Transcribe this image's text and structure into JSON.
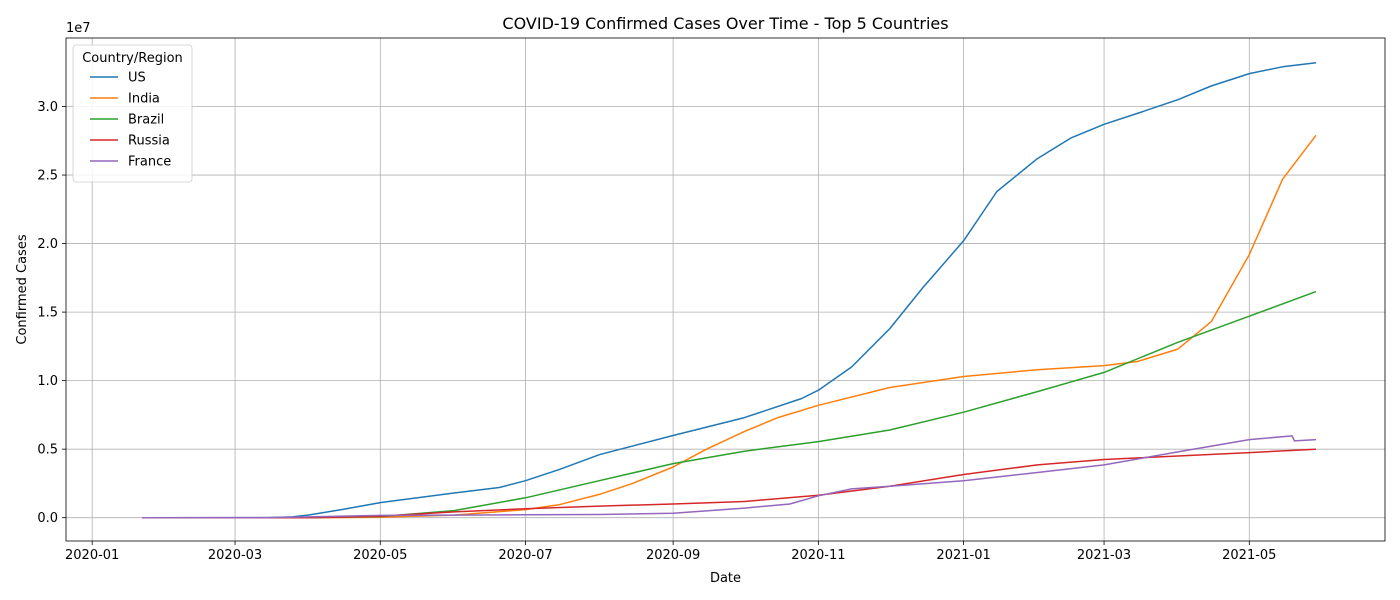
{
  "chart_data": {
    "type": "line",
    "title": "COVID-19 Confirmed Cases Over Time - Top 5 Countries",
    "xlabel": "Date",
    "ylabel": "Confirmed Cases",
    "y_scale_label": "1e7",
    "x_type": "date",
    "xlim": [
      "2019-12-21",
      "2021-06-27"
    ],
    "ylim": [
      -1700000,
      35000000
    ],
    "x_ticks": [
      "2020-01-01",
      "2020-03-01",
      "2020-05-01",
      "2020-07-01",
      "2020-09-01",
      "2020-11-01",
      "2021-01-01",
      "2021-03-01",
      "2021-05-01"
    ],
    "x_tick_labels": [
      "2020-01",
      "2020-03",
      "2020-05",
      "2020-07",
      "2020-09",
      "2020-11",
      "2021-01",
      "2021-03",
      "2021-05"
    ],
    "y_ticks": [
      0,
      5000000,
      10000000,
      15000000,
      20000000,
      25000000,
      30000000
    ],
    "y_tick_labels": [
      "0.0",
      "0.5",
      "1.0",
      "1.5",
      "2.0",
      "2.5",
      "3.0"
    ],
    "grid": true,
    "legend": {
      "title": "Country/Region",
      "placement": "top-left"
    },
    "series": [
      {
        "name": "US",
        "color": "#1f77b4",
        "points": [
          [
            "2020-01-22",
            0
          ],
          [
            "2020-03-15",
            5000
          ],
          [
            "2020-03-25",
            60000
          ],
          [
            "2020-04-01",
            200000
          ],
          [
            "2020-04-15",
            600000
          ],
          [
            "2020-05-01",
            1100000
          ],
          [
            "2020-06-01",
            1800000
          ],
          [
            "2020-06-20",
            2200000
          ],
          [
            "2020-07-01",
            2700000
          ],
          [
            "2020-07-15",
            3500000
          ],
          [
            "2020-08-01",
            4600000
          ],
          [
            "2020-09-01",
            6000000
          ],
          [
            "2020-10-01",
            7300000
          ],
          [
            "2020-10-25",
            8700000
          ],
          [
            "2020-11-01",
            9300000
          ],
          [
            "2020-11-15",
            11000000
          ],
          [
            "2020-12-01",
            13800000
          ],
          [
            "2020-12-15",
            16800000
          ],
          [
            "2021-01-01",
            20200000
          ],
          [
            "2021-01-15",
            23800000
          ],
          [
            "2021-02-01",
            26200000
          ],
          [
            "2021-02-15",
            27700000
          ],
          [
            "2021-03-01",
            28700000
          ],
          [
            "2021-03-15",
            29500000
          ],
          [
            "2021-04-01",
            30500000
          ],
          [
            "2021-04-15",
            31500000
          ],
          [
            "2021-05-01",
            32400000
          ],
          [
            "2021-05-15",
            32900000
          ],
          [
            "2021-05-29",
            33200000
          ]
        ]
      },
      {
        "name": "India",
        "color": "#ff7f0e",
        "points": [
          [
            "2020-01-22",
            0
          ],
          [
            "2020-04-01",
            2000
          ],
          [
            "2020-05-01",
            35000
          ],
          [
            "2020-06-01",
            190000
          ],
          [
            "2020-07-01",
            590000
          ],
          [
            "2020-07-15",
            940000
          ],
          [
            "2020-08-01",
            1700000
          ],
          [
            "2020-08-15",
            2500000
          ],
          [
            "2020-09-01",
            3700000
          ],
          [
            "2020-09-15",
            5000000
          ],
          [
            "2020-10-01",
            6300000
          ],
          [
            "2020-10-15",
            7300000
          ],
          [
            "2020-11-01",
            8200000
          ],
          [
            "2020-12-01",
            9500000
          ],
          [
            "2021-01-01",
            10300000
          ],
          [
            "2021-02-01",
            10800000
          ],
          [
            "2021-03-01",
            11100000
          ],
          [
            "2021-03-15",
            11400000
          ],
          [
            "2021-04-01",
            12300000
          ],
          [
            "2021-04-15",
            14300000
          ],
          [
            "2021-05-01",
            19200000
          ],
          [
            "2021-05-15",
            24700000
          ],
          [
            "2021-05-29",
            27900000
          ]
        ]
      },
      {
        "name": "Brazil",
        "color": "#2ca02c",
        "points": [
          [
            "2020-01-22",
            0
          ],
          [
            "2020-03-15",
            1000
          ],
          [
            "2020-04-01",
            6000
          ],
          [
            "2020-05-01",
            90000
          ],
          [
            "2020-06-01",
            520000
          ],
          [
            "2020-07-01",
            1450000
          ],
          [
            "2020-08-01",
            2700000
          ],
          [
            "2020-09-01",
            3950000
          ],
          [
            "2020-10-01",
            4850000
          ],
          [
            "2020-11-01",
            5550000
          ],
          [
            "2020-12-01",
            6400000
          ],
          [
            "2021-01-01",
            7700000
          ],
          [
            "2021-02-01",
            9200000
          ],
          [
            "2021-03-01",
            10600000
          ],
          [
            "2021-04-01",
            12800000
          ],
          [
            "2021-05-01",
            14700000
          ],
          [
            "2021-05-29",
            16500000
          ]
        ]
      },
      {
        "name": "Russia",
        "color": "#d62728",
        "points": [
          [
            "2020-01-22",
            0
          ],
          [
            "2020-04-01",
            3000
          ],
          [
            "2020-05-01",
            110000
          ],
          [
            "2020-06-01",
            420000
          ],
          [
            "2020-07-01",
            660000
          ],
          [
            "2020-08-01",
            850000
          ],
          [
            "2020-09-01",
            1000000
          ],
          [
            "2020-10-01",
            1180000
          ],
          [
            "2020-11-01",
            1640000
          ],
          [
            "2020-12-01",
            2300000
          ],
          [
            "2021-01-01",
            3150000
          ],
          [
            "2021-02-01",
            3850000
          ],
          [
            "2021-03-01",
            4250000
          ],
          [
            "2021-04-01",
            4500000
          ],
          [
            "2021-05-01",
            4750000
          ],
          [
            "2021-05-29",
            5000000
          ]
        ]
      },
      {
        "name": "France",
        "color": "#9467bd",
        "points": [
          [
            "2020-01-22",
            0
          ],
          [
            "2020-03-15",
            5000
          ],
          [
            "2020-04-01",
            60000
          ],
          [
            "2020-05-01",
            170000
          ],
          [
            "2020-06-01",
            190000
          ],
          [
            "2020-07-01",
            210000
          ],
          [
            "2020-08-01",
            230000
          ],
          [
            "2020-09-01",
            330000
          ],
          [
            "2020-10-01",
            700000
          ],
          [
            "2020-10-20",
            1000000
          ],
          [
            "2020-11-01",
            1600000
          ],
          [
            "2020-11-15",
            2100000
          ],
          [
            "2020-12-01",
            2300000
          ],
          [
            "2021-01-01",
            2700000
          ],
          [
            "2021-02-01",
            3300000
          ],
          [
            "2021-03-01",
            3850000
          ],
          [
            "2021-04-01",
            4800000
          ],
          [
            "2021-05-01",
            5700000
          ],
          [
            "2021-05-19",
            5970000
          ],
          [
            "2021-05-20",
            5600000
          ],
          [
            "2021-05-29",
            5700000
          ]
        ]
      }
    ]
  }
}
